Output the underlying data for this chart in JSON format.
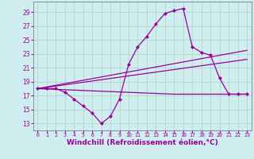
{
  "background_color": "#d0eef0",
  "grid_color": "#b0d8cc",
  "line_color": "#990099",
  "xlabel": "Windchill (Refroidissement éolien,°C)",
  "xlabel_fontsize": 6.5,
  "tick_fontsize": 6,
  "xlim": [
    -0.5,
    23.5
  ],
  "ylim": [
    12,
    30.5
  ],
  "yticks": [
    13,
    15,
    17,
    19,
    21,
    23,
    25,
    27,
    29
  ],
  "xticks": [
    0,
    1,
    2,
    3,
    4,
    5,
    6,
    7,
    8,
    9,
    10,
    11,
    12,
    13,
    14,
    15,
    16,
    17,
    18,
    19,
    20,
    21,
    22,
    23
  ],
  "series1_x": [
    0,
    1,
    2,
    3,
    4,
    5,
    6,
    7,
    8,
    9,
    10,
    11,
    12,
    13,
    14,
    15,
    16,
    17,
    18,
    19,
    20,
    21,
    22,
    23
  ],
  "series1_y": [
    18,
    18,
    18,
    17.5,
    16.5,
    15.5,
    14.5,
    13,
    14,
    16.5,
    21.5,
    24,
    25.5,
    27.3,
    28.8,
    29.2,
    29.5,
    24,
    23.2,
    22.8,
    19.5,
    17.2,
    17.2,
    17.2
  ],
  "series2_x": [
    0,
    15,
    23
  ],
  "series2_y": [
    18,
    17.2,
    17.2
  ],
  "series3_x": [
    0,
    23
  ],
  "series3_y": [
    18,
    23.5
  ],
  "series4_x": [
    0,
    23
  ],
  "series4_y": [
    18,
    22.2
  ]
}
